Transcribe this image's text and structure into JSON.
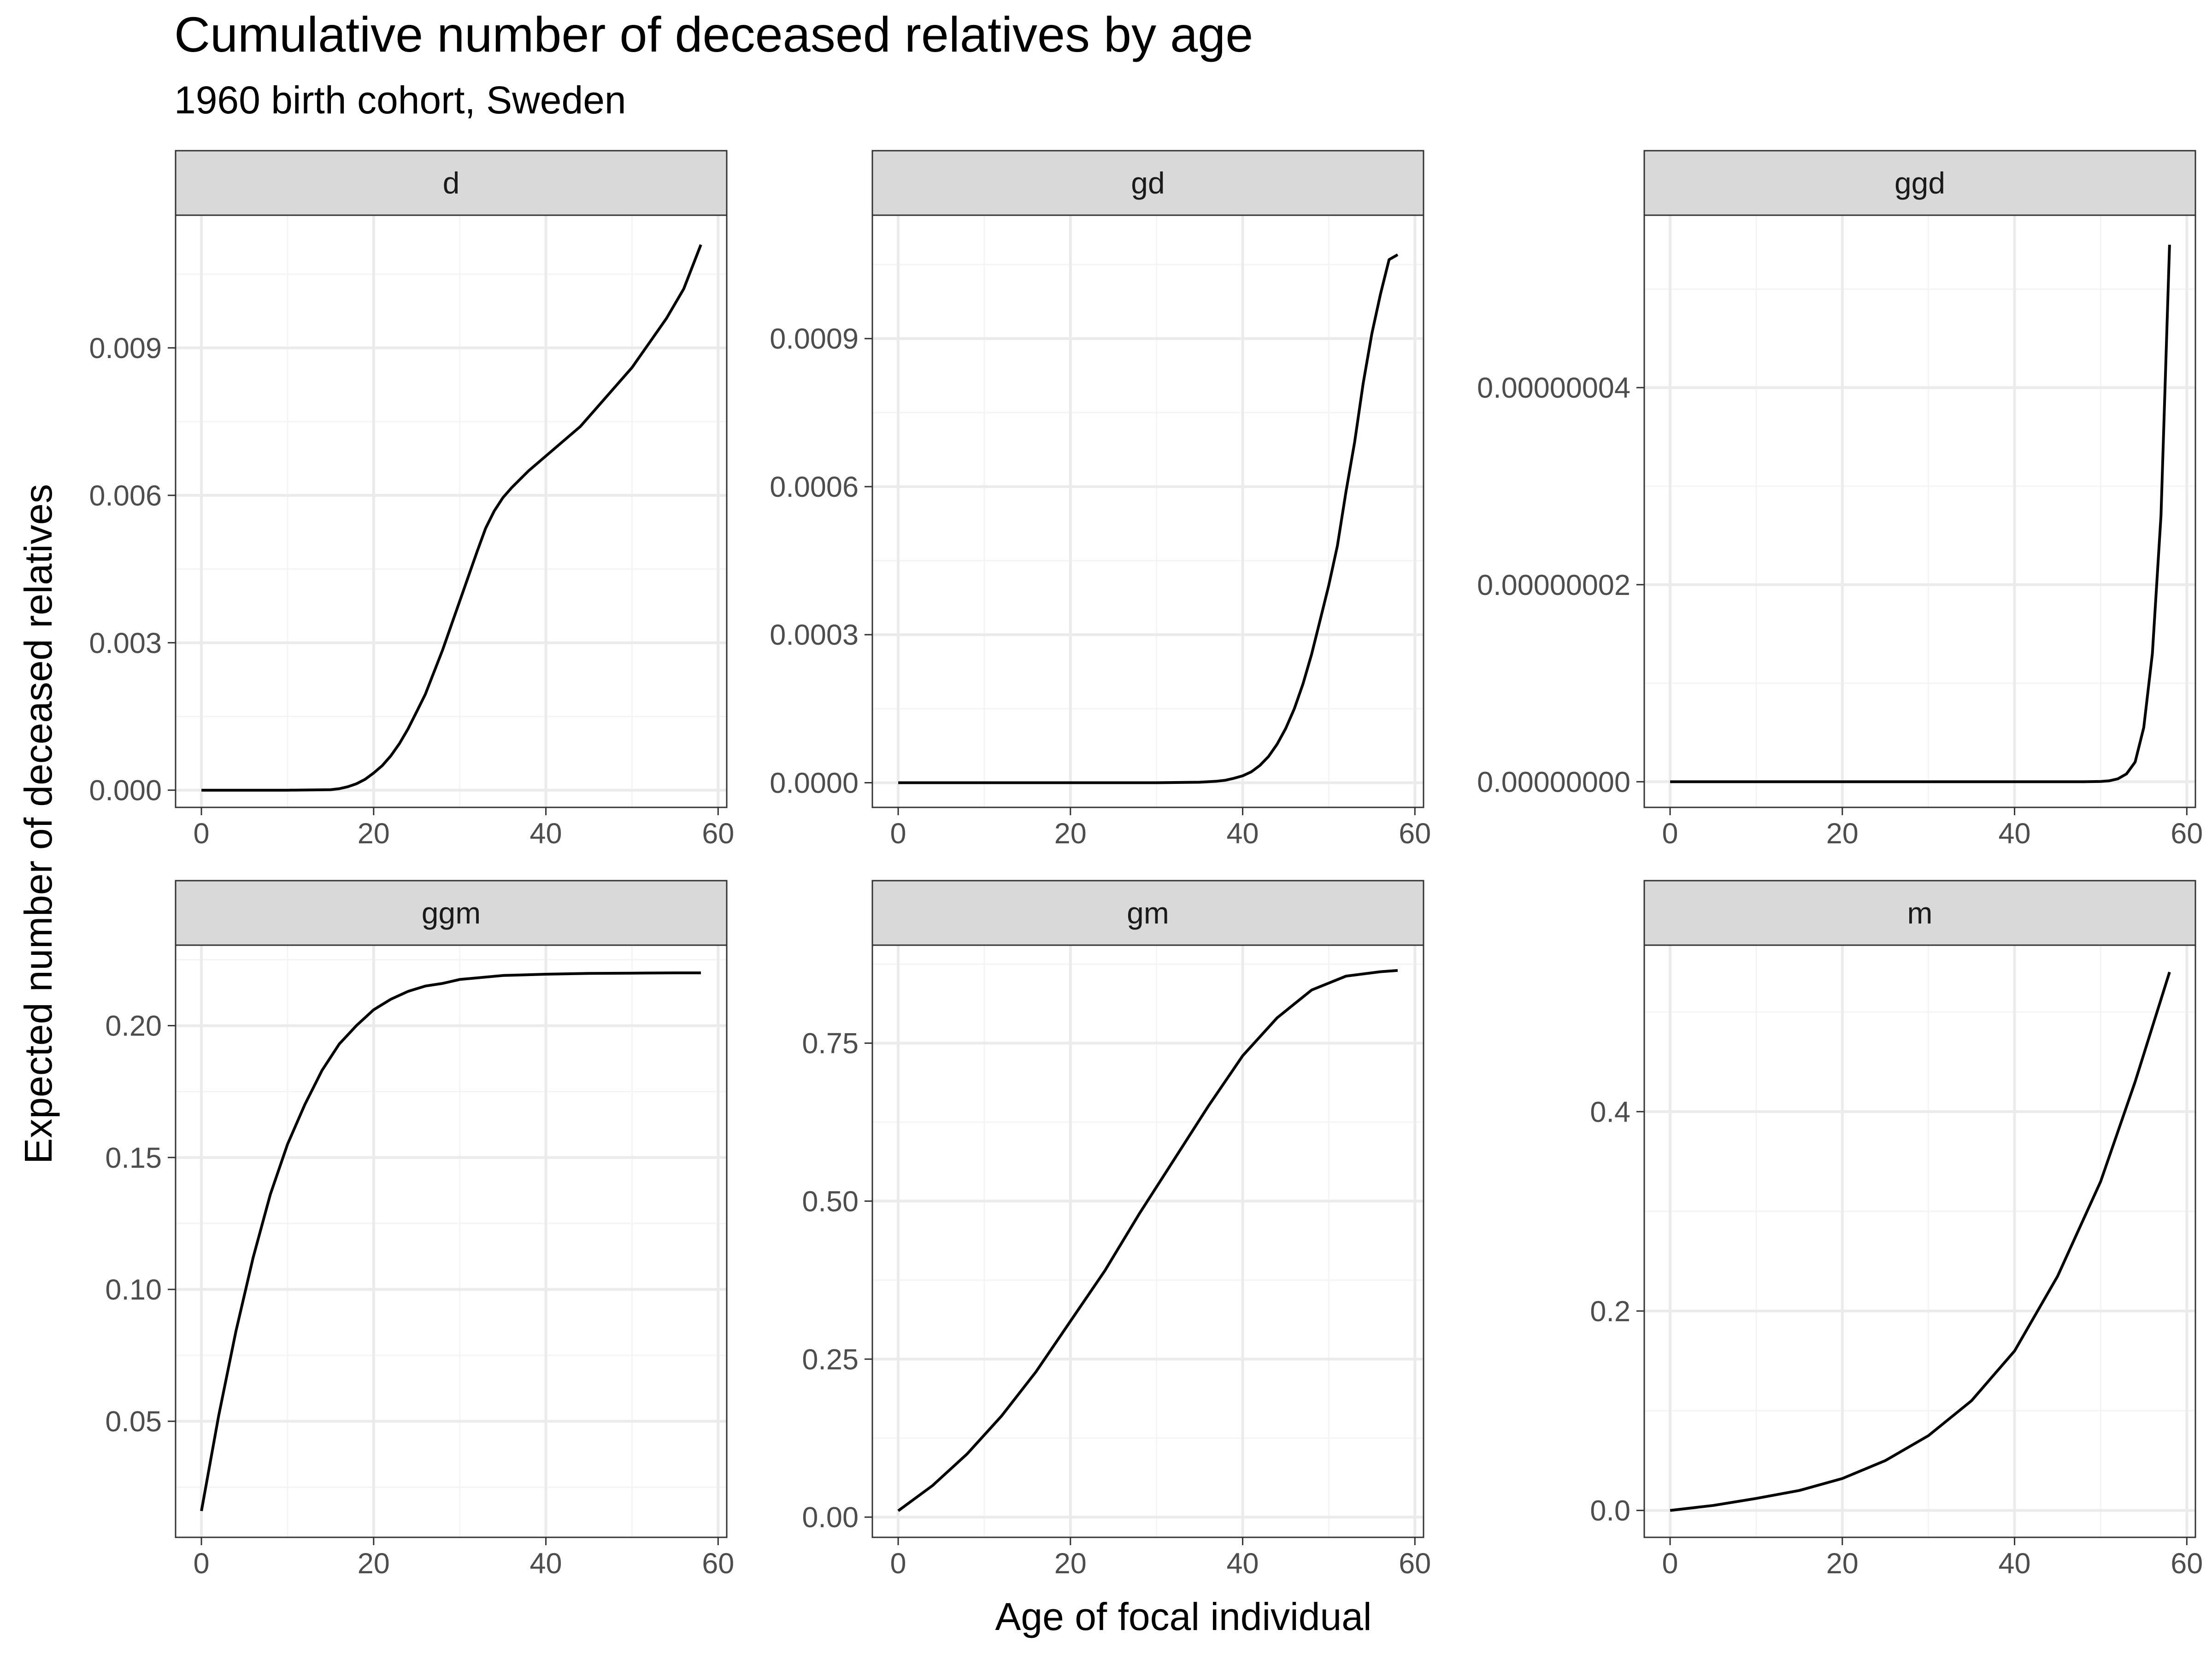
{
  "chart": {
    "title": "Cumulative number of deceased relatives by age",
    "subtitle": "1960 birth cohort, Sweden",
    "xlabel": "Age of focal individual",
    "ylabel": "Expected number of deceased relatives"
  },
  "colors": {
    "background": "#ffffff",
    "panel_border": "#333333",
    "strip_fill": "#d9d9d9",
    "grid_major": "#ebebeb",
    "grid_minor": "#f4f4f4",
    "line": "#000000",
    "tick_label": "#4d4d4d"
  },
  "chart_data": [
    {
      "type": "line",
      "facet": "d",
      "grid": true,
      "xlim": [
        -3,
        61
      ],
      "ylim": [
        -0.00035,
        0.0117
      ],
      "x_ticks": [
        0,
        20,
        40,
        60
      ],
      "x_tick_labels": [
        "0",
        "20",
        "40",
        "60"
      ],
      "y_ticks": [
        0,
        0.003,
        0.006,
        0.009
      ],
      "y_tick_labels": [
        "0.000",
        "0.003",
        "0.006",
        "0.009"
      ],
      "x": [
        0,
        5,
        10,
        15,
        16,
        17,
        18,
        19,
        20,
        21,
        22,
        23,
        24,
        25,
        26,
        27,
        28,
        29,
        30,
        31,
        32,
        33,
        34,
        35,
        36,
        38,
        40,
        42,
        44,
        46,
        48,
        50,
        52,
        54,
        56,
        58
      ],
      "y": [
        0,
        0,
        0,
        1e-05,
        3e-05,
        7e-05,
        0.00013,
        0.00022,
        0.00035,
        0.0005,
        0.0007,
        0.00095,
        0.00125,
        0.0016,
        0.00195,
        0.0024,
        0.00285,
        0.00335,
        0.00385,
        0.00435,
        0.00485,
        0.00533,
        0.00568,
        0.00595,
        0.00615,
        0.0065,
        0.0068,
        0.0071,
        0.0074,
        0.0078,
        0.0082,
        0.0086,
        0.0091,
        0.0096,
        0.0102,
        0.0111
      ]
    },
    {
      "type": "line",
      "facet": "gd",
      "grid": true,
      "xlim": [
        -3,
        61
      ],
      "ylim": [
        -5e-05,
        0.00115
      ],
      "x_ticks": [
        0,
        20,
        40,
        60
      ],
      "x_tick_labels": [
        "0",
        "20",
        "40",
        "60"
      ],
      "y_ticks": [
        0,
        0.0003,
        0.0006,
        0.0009
      ],
      "y_tick_labels": [
        "0.0000",
        "0.0003",
        "0.0006",
        "0.0009"
      ],
      "x": [
        0,
        10,
        20,
        30,
        35,
        37,
        38,
        39,
        40,
        41,
        42,
        43,
        44,
        45,
        46,
        47,
        48,
        49,
        50,
        51,
        52,
        53,
        54,
        55,
        56,
        57,
        58
      ],
      "y": [
        0,
        0,
        0,
        0,
        1e-06,
        3e-06,
        5e-06,
        9e-06,
        1.4e-05,
        2.2e-05,
        3.5e-05,
        5.3e-05,
        7.8e-05,
        0.00011,
        0.00015,
        0.0002,
        0.00026,
        0.00033,
        0.0004,
        0.00048,
        0.00059,
        0.00069,
        0.00081,
        0.00091,
        0.00099,
        0.00106,
        0.00107
      ]
    },
    {
      "type": "line",
      "facet": "ggd",
      "grid": true,
      "xlim": [
        -3,
        61
      ],
      "ylim": [
        -2.6e-09,
        5.75e-08
      ],
      "x_ticks": [
        0,
        20,
        40,
        60
      ],
      "x_tick_labels": [
        "0",
        "20",
        "40",
        "60"
      ],
      "y_ticks": [
        0,
        2e-08,
        4e-08
      ],
      "y_tick_labels": [
        "0.00000000",
        "0.00000002",
        "0.00000004"
      ],
      "x": [
        0,
        10,
        20,
        30,
        40,
        45,
        48,
        50,
        51,
        52,
        53,
        54,
        55,
        56,
        57,
        58
      ],
      "y": [
        0,
        0,
        0,
        0,
        0,
        0,
        0,
        3e-11,
        1e-10,
        3e-10,
        8e-10,
        2e-09,
        5.5e-09,
        1.3e-08,
        2.7e-08,
        5.45e-08
      ]
    },
    {
      "type": "line",
      "facet": "ggm",
      "grid": true,
      "xlim": [
        -3,
        61
      ],
      "ylim": [
        0.006,
        0.2305
      ],
      "x_ticks": [
        0,
        20,
        40,
        60
      ],
      "x_tick_labels": [
        "0",
        "20",
        "40",
        "60"
      ],
      "y_ticks": [
        0.05,
        0.1,
        0.15,
        0.2
      ],
      "y_tick_labels": [
        "0.05",
        "0.10",
        "0.15",
        "0.20"
      ],
      "x": [
        0,
        2,
        4,
        6,
        8,
        10,
        12,
        14,
        16,
        18,
        20,
        22,
        24,
        26,
        28,
        30,
        35,
        40,
        45,
        50,
        55,
        58
      ],
      "y": [
        0.016,
        0.052,
        0.084,
        0.112,
        0.136,
        0.155,
        0.17,
        0.183,
        0.193,
        0.2,
        0.206,
        0.21,
        0.213,
        0.215,
        0.216,
        0.2175,
        0.219,
        0.2195,
        0.2198,
        0.2199,
        0.22,
        0.22
      ]
    },
    {
      "type": "line",
      "facet": "gm",
      "grid": true,
      "xlim": [
        -3,
        61
      ],
      "ylim": [
        -0.032,
        0.905
      ],
      "x_ticks": [
        0,
        20,
        40,
        60
      ],
      "x_tick_labels": [
        "0",
        "20",
        "40",
        "60"
      ],
      "y_ticks": [
        0,
        0.25,
        0.5,
        0.75
      ],
      "y_tick_labels": [
        "0.00",
        "0.25",
        "0.50",
        "0.75"
      ],
      "x": [
        0,
        4,
        8,
        12,
        16,
        20,
        24,
        28,
        32,
        36,
        40,
        44,
        48,
        52,
        56,
        58
      ],
      "y": [
        0.01,
        0.05,
        0.1,
        0.16,
        0.23,
        0.31,
        0.39,
        0.48,
        0.565,
        0.65,
        0.73,
        0.79,
        0.834,
        0.856,
        0.863,
        0.865
      ]
    },
    {
      "type": "line",
      "facet": "m",
      "grid": true,
      "xlim": [
        -3,
        61
      ],
      "ylim": [
        -0.027,
        0.567
      ],
      "x_ticks": [
        0,
        20,
        40,
        60
      ],
      "x_tick_labels": [
        "0",
        "20",
        "40",
        "60"
      ],
      "y_ticks": [
        0,
        0.2,
        0.4
      ],
      "y_tick_labels": [
        "0.0",
        "0.2",
        "0.4"
      ],
      "x": [
        0,
        5,
        10,
        15,
        20,
        25,
        30,
        35,
        40,
        45,
        50,
        54,
        58
      ],
      "y": [
        0,
        0.005,
        0.012,
        0.02,
        0.032,
        0.05,
        0.075,
        0.11,
        0.16,
        0.235,
        0.33,
        0.43,
        0.54
      ]
    }
  ]
}
